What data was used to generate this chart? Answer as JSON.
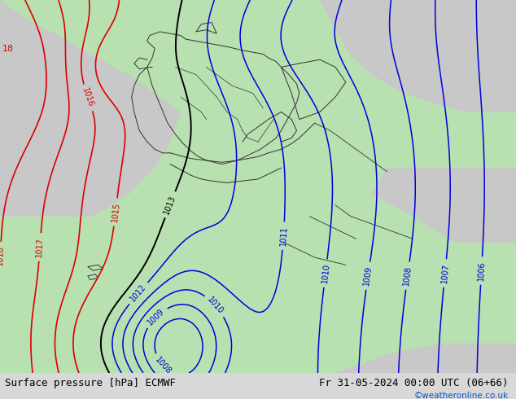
{
  "title_left": "Surface pressure [hPa] ECMWF",
  "title_right": "Fr 31-05-2024 00:00 UTC (06+66)",
  "watermark": "©weatheronline.co.uk",
  "land_color_main": "#b8e0b0",
  "land_color_dark": "#a0cc98",
  "sea_color": "#c8c8c8",
  "border_color": "#333333",
  "contour_color_blue": "#0000dd",
  "contour_color_black": "#000000",
  "contour_color_red": "#dd0000",
  "bottom_bar_color": "#d8d8d8",
  "bottom_bar_text_color": "#000000",
  "figsize": [
    6.34,
    4.9
  ],
  "dpi": 100,
  "font_size_bottom": 9,
  "font_size_label": 7,
  "label_18_color": "#dd0000"
}
